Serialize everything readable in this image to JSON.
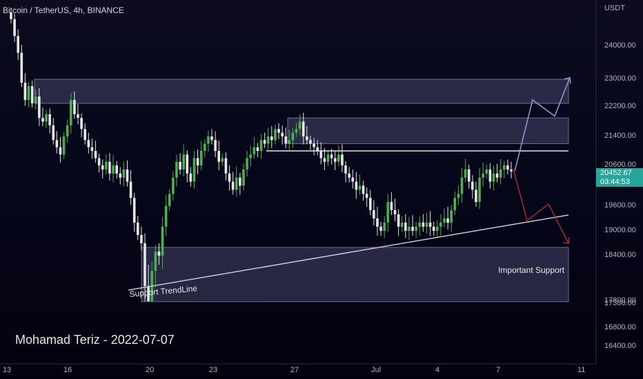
{
  "header": {
    "symbol_line": "Bitcoin / TetherUS, 4h, BINANCE",
    "currency": "USDT"
  },
  "price_label": {
    "price": "20452.67",
    "countdown": "03:44:53",
    "color": "#26a69a"
  },
  "watermark": "Mohamad Teriz - 2022-07-07",
  "annotations": {
    "trendline_label": "Support TrendLine",
    "support_label": "Important Support"
  },
  "colors": {
    "up": "#26a69a",
    "up_bright": "#4caf50",
    "down": "#e6e6e6",
    "zone_fill": "#6b6b9a",
    "bull_arrow": "#8f93c8",
    "bear_arrow": "#9b2c2c"
  },
  "chart_data": {
    "type": "candlestick",
    "symbol": "Bitcoin / TetherUS",
    "timeframe": "4h",
    "exchange": "BINANCE",
    "currency": "USDT",
    "x_ticks": [
      "13",
      "16",
      "20",
      "23",
      "27",
      "Jul",
      "4",
      "7",
      "11"
    ],
    "y_ticks": [
      16400,
      16800,
      17300,
      17800,
      18400,
      19000,
      19600,
      20600,
      21400,
      22200,
      23000,
      24000
    ],
    "ylim": [
      16100,
      25200
    ],
    "last_price": 20452.67,
    "zones": [
      {
        "label": "",
        "low": 22300,
        "high": 23000
      },
      {
        "label": "",
        "low": 21200,
        "high": 21900
      },
      {
        "label": "Important Support",
        "low": 17700,
        "high": 18600
      }
    ],
    "resistance_line": 21000,
    "support_trendline": {
      "start": [
        "Jun 18",
        17700
      ],
      "end": [
        "Jul 11",
        19400
      ]
    },
    "projections": {
      "bullish": [
        20452,
        22400,
        21950,
        23050
      ],
      "bearish": [
        20452,
        19250,
        19650,
        18700
      ]
    },
    "series_close": [
      24800,
      24300,
      23800,
      22900,
      22400,
      22800,
      22300,
      22500,
      21900,
      21800,
      22000,
      21700,
      21300,
      21100,
      20900,
      21400,
      21700,
      22400,
      22000,
      21900,
      21600,
      21300,
      21100,
      21000,
      20800,
      20600,
      20500,
      20700,
      20400,
      20600,
      20400,
      20300,
      20500,
      20200,
      19800,
      19200,
      18900,
      18700,
      18000,
      17800,
      18200,
      18500,
      18400,
      19100,
      19600,
      19900,
      20300,
      20700,
      20500,
      20900,
      20400,
      20200,
      20800,
      20600,
      21000,
      21200,
      21400,
      21300,
      21000,
      20700,
      20800,
      20400,
      20200,
      20000,
      20300,
      20100,
      20500,
      20800,
      20900,
      21100,
      21000,
      21300,
      21200,
      21400,
      21300,
      21600,
      21500,
      21400,
      21200,
      21300,
      21500,
      21600,
      21800,
      21400,
      21300,
      21200,
      21100,
      21000,
      20800,
      20700,
      20900,
      20800,
      20700,
      20900,
      20600,
      20400,
      20300,
      20200,
      20000,
      20100,
      19900,
      19800,
      19500,
      19300,
      19100,
      19000,
      19200,
      19700,
      19500,
      19400,
      19100,
      19200,
      19000,
      19100,
      19000,
      19100,
      19200,
      19100,
      19200,
      19100,
      19000,
      19100,
      19200,
      19300,
      19200,
      19500,
      19800,
      19900,
      20300,
      20500,
      20200,
      20000,
      19700,
      20300,
      20400,
      20500,
      20200,
      20400,
      20300,
      20500,
      20600,
      20500,
      20452
    ]
  }
}
